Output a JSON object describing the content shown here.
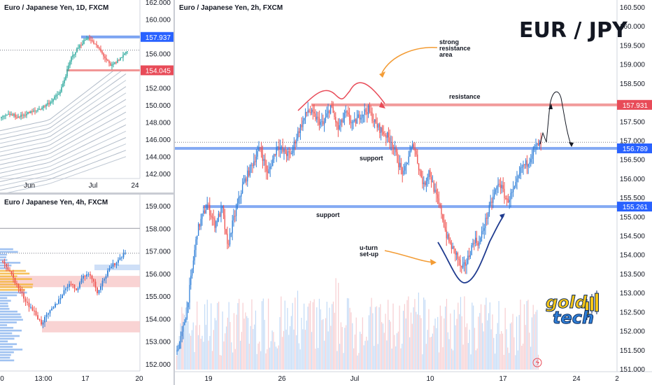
{
  "colors": {
    "bull": "#26a69a",
    "bull_blue": "#2f7fd8",
    "bear": "#ef5350",
    "support_line": "#5b8def",
    "resistance_line": "#f08a8a",
    "support_tag": "#2962ff",
    "resistance_tag": "#e84b58",
    "zone_fill": "#f8c8c8",
    "volume_up": "#b7d4f5",
    "volume_down": "#f6c4c8",
    "annotation_arrow": "#f39c35"
  },
  "main_chart": {
    "title": "Euro / Japanese Yen, 2h, FXCM",
    "big_title": "EUR / JPY",
    "y_ticks": [
      "160.500",
      "160.000",
      "159.500",
      "159.000",
      "158.500",
      "158.000",
      "157.500",
      "157.000",
      "156.500",
      "156.000",
      "155.500",
      "155.000",
      "154.500",
      "154.000",
      "153.500",
      "153.000",
      "152.500",
      "152.000",
      "151.500",
      "151.000"
    ],
    "x_ticks": [
      "19",
      "26",
      "Jul",
      "10",
      "17",
      "24",
      "2"
    ],
    "price_tags": [
      {
        "name": "resistance",
        "value": "157.931",
        "price": 157.931
      },
      {
        "name": "support-upper",
        "value": "156.789",
        "price": 156.789
      },
      {
        "name": "support-lower",
        "value": "155.261",
        "price": 155.261
      }
    ],
    "annotations": {
      "strong_resistance": [
        "strong",
        "resistance",
        "area"
      ],
      "resistance_label": "resistance",
      "support_upper_label": "support",
      "support_lower_label": "support",
      "uturn": [
        "u-turn",
        "set-up"
      ]
    },
    "logo": {
      "line1": "gold",
      "line2": "tech"
    }
  },
  "daily_chart": {
    "title": "Euro / Japanese Yen, 1D, FXCM",
    "y_ticks": [
      "162.000",
      "160.000",
      "158.000",
      "156.000",
      "154.000",
      "152.000",
      "150.000",
      "148.000",
      "146.000",
      "144.000",
      "142.000"
    ],
    "x_ticks": [
      "Jun",
      "Jul",
      "24"
    ],
    "price_tags": [
      {
        "value": "157.937",
        "price": 157.937
      },
      {
        "value": "154.045",
        "price": 154.045
      }
    ]
  },
  "h4_chart": {
    "title": "Euro / Japanese Yen, 4h, FXCM",
    "y_ticks": [
      "159.000",
      "158.000",
      "157.000",
      "156.000",
      "155.000",
      "154.000",
      "153.000",
      "152.000"
    ],
    "x_ticks": [
      "0",
      "13:00",
      "17",
      "20"
    ]
  },
  "chart_data": [
    {
      "type": "candlestick",
      "title": "Euro / Japanese Yen, 2h, FXCM",
      "ylim": [
        151.0,
        160.7
      ],
      "x_categories": [
        "19",
        "26",
        "Jul",
        "10",
        "17",
        "24",
        "2"
      ],
      "path_anchors_close": [
        [
          0,
          151.5
        ],
        [
          4,
          151.9
        ],
        [
          8,
          152.6
        ],
        [
          12,
          153.6
        ],
        [
          16,
          154.6
        ],
        [
          20,
          155.0
        ],
        [
          24,
          155.3
        ],
        [
          30,
          154.8
        ],
        [
          36,
          155.2
        ],
        [
          40,
          154.2
        ],
        [
          44,
          154.8
        ],
        [
          48,
          155.3
        ],
        [
          52,
          155.8
        ],
        [
          56,
          156.1
        ],
        [
          60,
          156.4
        ],
        [
          66,
          156.8
        ],
        [
          72,
          156.1
        ],
        [
          76,
          156.5
        ],
        [
          80,
          156.9
        ],
        [
          84,
          156.7
        ],
        [
          90,
          156.6
        ],
        [
          96,
          157.2
        ],
        [
          100,
          157.5
        ],
        [
          104,
          157.8
        ],
        [
          110,
          157.6
        ],
        [
          116,
          157.4
        ],
        [
          122,
          157.9
        ],
        [
          128,
          157.3
        ],
        [
          134,
          157.7
        ],
        [
          140,
          157.4
        ],
        [
          146,
          157.7
        ],
        [
          152,
          157.8
        ],
        [
          158,
          157.4
        ],
        [
          164,
          157.2
        ],
        [
          170,
          157.0
        ],
        [
          176,
          156.4
        ],
        [
          180,
          156.1
        ],
        [
          184,
          156.6
        ],
        [
          188,
          156.9
        ],
        [
          192,
          156.3
        ],
        [
          196,
          155.8
        ],
        [
          200,
          156.2
        ],
        [
          206,
          155.5
        ],
        [
          210,
          155.1
        ],
        [
          214,
          154.5
        ],
        [
          218,
          154.2
        ],
        [
          222,
          154.0
        ],
        [
          226,
          153.6
        ],
        [
          230,
          153.8
        ],
        [
          236,
          154.4
        ],
        [
          240,
          154.3
        ],
        [
          246,
          155.0
        ],
        [
          252,
          155.6
        ],
        [
          256,
          155.9
        ],
        [
          262,
          155.4
        ],
        [
          268,
          155.7
        ],
        [
          274,
          156.3
        ],
        [
          278,
          156.4
        ],
        [
          284,
          156.8
        ],
        [
          288,
          156.9
        ]
      ],
      "drawings": {
        "resistance_level": 157.931,
        "support_levels": [
          156.789,
          155.261
        ],
        "projection": "bounce from 157.0 to 157.93 then back to 156.8"
      }
    },
    {
      "type": "candlestick",
      "title": "Euro / Japanese Yen, 1D, FXCM",
      "ylim": [
        141.0,
        162.0
      ],
      "x_categories": [
        "Jun",
        "Jul",
        "24"
      ],
      "path_anchors_close": [
        [
          0,
          148.5
        ],
        [
          6,
          148.9
        ],
        [
          12,
          148.6
        ],
        [
          18,
          149.0
        ],
        [
          24,
          149.3
        ],
        [
          30,
          149.8
        ],
        [
          36,
          150.5
        ],
        [
          42,
          151.5
        ],
        [
          46,
          153.5
        ],
        [
          50,
          155.5
        ],
        [
          54,
          156.5
        ],
        [
          58,
          157.3
        ],
        [
          62,
          157.9
        ],
        [
          66,
          157.2
        ],
        [
          70,
          156.5
        ],
        [
          74,
          155.5
        ],
        [
          78,
          154.5
        ],
        [
          82,
          155.0
        ],
        [
          86,
          155.6
        ],
        [
          90,
          156.4
        ]
      ]
    },
    {
      "type": "candlestick",
      "title": "Euro / Japanese Yen, 4h, FXCM",
      "ylim": [
        151.8,
        159.6
      ],
      "x_categories": [
        "0",
        "13:00",
        "17",
        "20"
      ],
      "path_anchors_close": [
        [
          0,
          156.6
        ],
        [
          6,
          155.8
        ],
        [
          10,
          155.2
        ],
        [
          14,
          154.7
        ],
        [
          18,
          154.3
        ],
        [
          22,
          153.8
        ],
        [
          26,
          154.2
        ],
        [
          30,
          154.6
        ],
        [
          34,
          155.1
        ],
        [
          38,
          155.6
        ],
        [
          42,
          155.3
        ],
        [
          46,
          155.9
        ],
        [
          50,
          156.0
        ],
        [
          54,
          155.2
        ],
        [
          58,
          155.8
        ],
        [
          62,
          156.3
        ],
        [
          66,
          156.6
        ],
        [
          70,
          157.0
        ]
      ],
      "zones": [
        {
          "low": 155.4,
          "high": 155.9
        },
        {
          "low": 153.4,
          "high": 153.9
        },
        {
          "low": 156.2,
          "high": 156.4
        }
      ]
    }
  ]
}
